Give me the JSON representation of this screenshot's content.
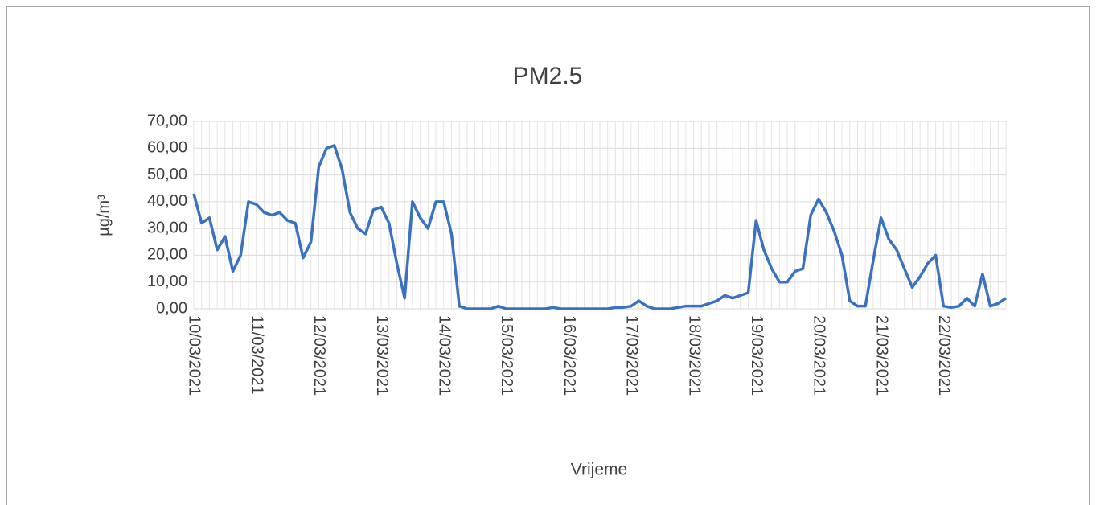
{
  "chart_data": {
    "type": "line",
    "title": "PM2.5",
    "x_label": "Vrijeme",
    "y_label": "µg/m³",
    "categories": [
      "10/03/2021",
      null,
      null,
      null,
      null,
      null,
      null,
      null,
      "11/03/2021",
      null,
      null,
      null,
      null,
      null,
      null,
      null,
      "12/03/2021",
      null,
      null,
      null,
      null,
      null,
      null,
      null,
      "13/03/2021",
      null,
      null,
      null,
      null,
      null,
      null,
      null,
      "14/03/2021",
      null,
      null,
      null,
      null,
      null,
      null,
      null,
      "15/03/2021",
      null,
      null,
      null,
      null,
      null,
      null,
      null,
      "16/03/2021",
      null,
      null,
      null,
      null,
      null,
      null,
      null,
      "17/03/2021",
      null,
      null,
      null,
      null,
      null,
      null,
      null,
      "18/03/2021",
      null,
      null,
      null,
      null,
      null,
      null,
      null,
      "19/03/2021",
      null,
      null,
      null,
      null,
      null,
      null,
      null,
      "20/03/2021",
      null,
      null,
      null,
      null,
      null,
      null,
      null,
      "21/03/2021",
      null,
      null,
      null,
      null,
      null,
      null,
      null,
      "22/03/2021",
      null,
      null,
      null,
      null,
      null,
      null,
      null,
      null
    ],
    "series": [
      {
        "name": "PM2.5",
        "color": "#3a72c0",
        "values": [
          43,
          32,
          34,
          22,
          27,
          14,
          20,
          40,
          39,
          36,
          35,
          36,
          33,
          32,
          19,
          25,
          53,
          60,
          61,
          52,
          36,
          30,
          28,
          37,
          38,
          32,
          17,
          4,
          40,
          34,
          30,
          40,
          40,
          28,
          1,
          0,
          0,
          0,
          0,
          1,
          0,
          0,
          0,
          0,
          0,
          0,
          0.5,
          0,
          0,
          0,
          0,
          0,
          0,
          0,
          0.5,
          0.5,
          1,
          3,
          1,
          0,
          0,
          0,
          0.5,
          1,
          1,
          1,
          2,
          3,
          5,
          4,
          5,
          6,
          33,
          22,
          15,
          10,
          10,
          14,
          15,
          35,
          41,
          36,
          29,
          20,
          3,
          1,
          1,
          18,
          34,
          26,
          22,
          15,
          8,
          12,
          17,
          20,
          1,
          0.5,
          1,
          4,
          1,
          13,
          1,
          2,
          4
        ]
      }
    ],
    "ylim": [
      0,
      70
    ],
    "yticks": [
      {
        "value": 0,
        "label": "0,00"
      },
      {
        "value": 10,
        "label": "10,00"
      },
      {
        "value": 20,
        "label": "20,00"
      },
      {
        "value": 30,
        "label": "30,00"
      },
      {
        "value": 40,
        "label": "40,00"
      },
      {
        "value": 50,
        "label": "50,00"
      },
      {
        "value": 60,
        "label": "60,00"
      },
      {
        "value": 70,
        "label": "70,00"
      }
    ],
    "grid": true
  }
}
